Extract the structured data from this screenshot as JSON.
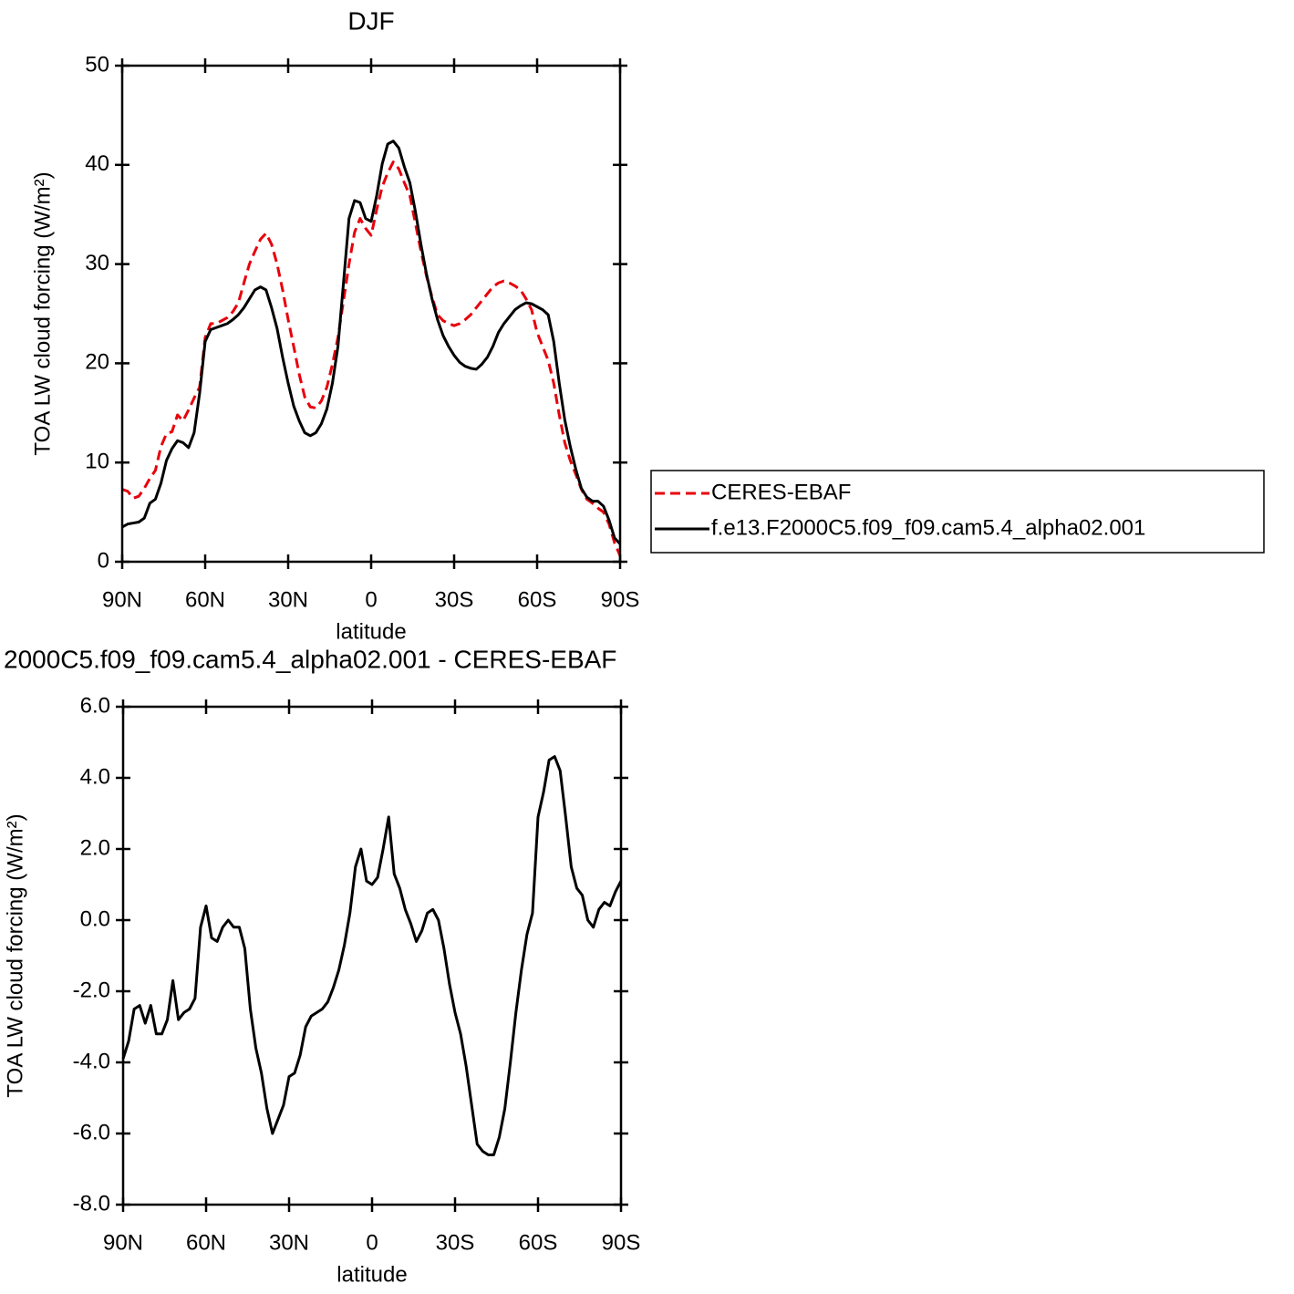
{
  "chart_data": [
    {
      "type": "line",
      "title": "DJF",
      "xlabel": "latitude",
      "ylabel": "TOA LW cloud forcing (W/m²)",
      "x": [
        90,
        88,
        86,
        84,
        82,
        80,
        78,
        76,
        74,
        72,
        70,
        68,
        66,
        64,
        62,
        60,
        58,
        56,
        54,
        52,
        50,
        48,
        46,
        44,
        42,
        40,
        38,
        36,
        34,
        32,
        30,
        28,
        26,
        24,
        22,
        20,
        18,
        16,
        14,
        12,
        10,
        8,
        6,
        4,
        2,
        0,
        -2,
        -4,
        -6,
        -8,
        -10,
        -12,
        -14,
        -16,
        -18,
        -20,
        -22,
        -24,
        -26,
        -28,
        -30,
        -32,
        -34,
        -36,
        -38,
        -40,
        -42,
        -44,
        -46,
        -48,
        -50,
        -52,
        -54,
        -56,
        -58,
        -60,
        -62,
        -64,
        -66,
        -68,
        -70,
        -72,
        -74,
        -76,
        -78,
        -80,
        -82,
        -84,
        -86,
        -88,
        -90
      ],
      "series": [
        {
          "name": "CERES-EBAF",
          "color": "#e8000b",
          "dash": true,
          "values": [
            7.3,
            7.1,
            6.4,
            6.6,
            7.4,
            8.4,
            9.2,
            11.6,
            12.9,
            13.1,
            14.8,
            14.2,
            15.3,
            16.5,
            17.6,
            22.6,
            24.0,
            24.0,
            24.3,
            24.6,
            25.2,
            26.1,
            28.1,
            30.0,
            31.3,
            32.5,
            33.1,
            32.0,
            30.0,
            27.4,
            24.4,
            21.7,
            18.9,
            16.6,
            15.6,
            15.5,
            16.2,
            17.6,
            19.9,
            22.6,
            26.3,
            30.0,
            33.2,
            34.6,
            33.6,
            32.9,
            35.5,
            37.8,
            39.2,
            40.3,
            39.6,
            38.2,
            36.9,
            34.1,
            31.3,
            28.8,
            26.7,
            24.9,
            24.3,
            24.0,
            23.8,
            24.0,
            24.4,
            24.9,
            25.6,
            26.3,
            27.0,
            27.7,
            28.1,
            28.3,
            28.1,
            27.8,
            27.4,
            26.5,
            25.4,
            23.1,
            21.7,
            20.3,
            18.0,
            14.8,
            12.0,
            10.2,
            8.8,
            7.3,
            6.3,
            5.9,
            5.4,
            5.0,
            3.8,
            1.9,
            0.6
          ]
        },
        {
          "name": "f.e13.F2000C5.f09_f09.cam5.4_alpha02.001",
          "color": "#000000",
          "dash": false,
          "values": [
            3.5,
            3.8,
            3.9,
            4.0,
            4.4,
            5.9,
            6.3,
            7.9,
            10.2,
            11.4,
            12.2,
            12.0,
            11.5,
            13.0,
            17.0,
            22.2,
            23.4,
            23.6,
            23.8,
            24.0,
            24.4,
            24.9,
            25.6,
            26.5,
            27.4,
            27.7,
            27.4,
            25.6,
            23.5,
            20.6,
            18.0,
            15.7,
            14.2,
            13.0,
            12.7,
            13.0,
            13.9,
            15.4,
            18.0,
            21.7,
            28.1,
            34.6,
            36.4,
            36.2,
            34.6,
            34.3,
            36.9,
            40.1,
            42.1,
            42.4,
            41.7,
            39.8,
            38.2,
            35.3,
            32.0,
            29.0,
            26.5,
            24.4,
            22.8,
            21.7,
            20.8,
            20.1,
            19.7,
            19.5,
            19.4,
            19.9,
            20.6,
            21.7,
            23.1,
            24.0,
            24.7,
            25.4,
            25.8,
            26.1,
            26.0,
            25.7,
            25.4,
            24.9,
            22.2,
            18.0,
            14.3,
            11.6,
            9.3,
            7.4,
            6.5,
            6.1,
            6.1,
            5.6,
            4.2,
            2.4,
            1.8
          ]
        }
      ],
      "xlim": [
        90,
        -90
      ],
      "xticks": [
        {
          "value": 90,
          "label": "90N"
        },
        {
          "value": 60,
          "label": "60N"
        },
        {
          "value": 30,
          "label": "30N"
        },
        0,
        {
          "value": -30,
          "label": "30S"
        },
        {
          "value": -60,
          "label": "60S"
        },
        {
          "value": -90,
          "label": "90S"
        }
      ],
      "ylim": [
        0,
        50
      ],
      "yticks": [
        0,
        10,
        20,
        30,
        40,
        50
      ],
      "legend": "right"
    },
    {
      "type": "line",
      "title": "2000C5.f09_f09.cam5.4_alpha02.001 - CERES-EBAF",
      "xlabel": "latitude",
      "ylabel": "TOA LW cloud forcing (W/m²)",
      "x": [
        90,
        88,
        86,
        84,
        82,
        80,
        78,
        76,
        74,
        72,
        70,
        68,
        66,
        64,
        62,
        60,
        58,
        56,
        54,
        52,
        50,
        48,
        46,
        44,
        42,
        40,
        38,
        36,
        34,
        32,
        30,
        28,
        26,
        24,
        22,
        20,
        18,
        16,
        14,
        12,
        10,
        8,
        6,
        4,
        2,
        0,
        -2,
        -4,
        -6,
        -8,
        -10,
        -12,
        -14,
        -16,
        -18,
        -20,
        -22,
        -24,
        -26,
        -28,
        -30,
        -32,
        -34,
        -36,
        -38,
        -40,
        -42,
        -44,
        -46,
        -48,
        -50,
        -52,
        -54,
        -56,
        -58,
        -60,
        -62,
        -64,
        -66,
        -68,
        -70,
        -72,
        -74,
        -76,
        -78,
        -80,
        -82,
        -84,
        -86,
        -88,
        -90
      ],
      "series": [
        {
          "color": "#000000",
          "dash": false,
          "values": [
            -3.9,
            -3.4,
            -2.5,
            -2.4,
            -2.9,
            -2.4,
            -3.2,
            -3.2,
            -2.8,
            -1.7,
            -2.8,
            -2.6,
            -2.5,
            -2.2,
            -0.2,
            0.4,
            -0.5,
            -0.6,
            -0.2,
            0.0,
            -0.2,
            -0.2,
            -0.8,
            -2.5,
            -3.6,
            -4.3,
            -5.3,
            -6.0,
            -5.6,
            -5.2,
            -4.4,
            -4.3,
            -3.8,
            -3.0,
            -2.7,
            -2.6,
            -2.5,
            -2.3,
            -1.9,
            -1.4,
            -0.7,
            0.2,
            1.5,
            2.0,
            1.1,
            1.0,
            1.2,
            2.0,
            2.9,
            1.3,
            0.9,
            0.3,
            -0.1,
            -0.6,
            -0.3,
            0.2,
            0.3,
            0.0,
            -0.8,
            -1.8,
            -2.6,
            -3.2,
            -4.1,
            -5.2,
            -6.3,
            -6.5,
            -6.6,
            -6.6,
            -6.1,
            -5.3,
            -4.0,
            -2.6,
            -1.4,
            -0.4,
            0.2,
            2.9,
            3.6,
            4.5,
            4.6,
            4.2,
            2.9,
            1.5,
            0.9,
            0.7,
            0.0,
            -0.2,
            0.3,
            0.5,
            0.4,
            0.8,
            1.1
          ]
        }
      ],
      "xlim": [
        90,
        -90
      ],
      "xticks": [
        {
          "value": 90,
          "label": "90N"
        },
        {
          "value": 60,
          "label": "60N"
        },
        {
          "value": 30,
          "label": "30N"
        },
        0,
        {
          "value": -30,
          "label": "30S"
        },
        {
          "value": -60,
          "label": "60S"
        },
        {
          "value": -90,
          "label": "90S"
        }
      ],
      "ylim": [
        -8,
        6
      ],
      "yticks": [
        {
          "value": -8,
          "label": "-8.0"
        },
        {
          "value": -6,
          "label": "-6.0"
        },
        {
          "value": -4,
          "label": "-4.0"
        },
        {
          "value": -2,
          "label": "-2.0"
        },
        {
          "value": 0,
          "label": "0.0"
        },
        {
          "value": 2,
          "label": "2.0"
        },
        {
          "value": 4,
          "label": "4.0"
        },
        {
          "value": 6,
          "label": "6.0"
        }
      ]
    }
  ]
}
